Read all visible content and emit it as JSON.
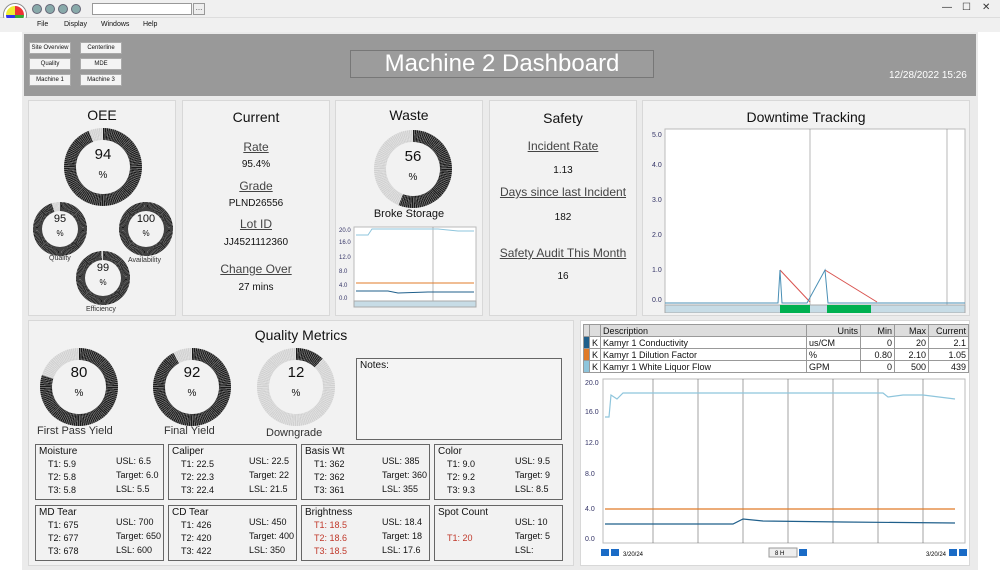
{
  "menu": {
    "items": [
      "File",
      "Display",
      "Windows",
      "Help"
    ]
  },
  "nav": {
    "buttons": [
      "Site Overview",
      "Centerline",
      "Quality",
      "MDE",
      "Machine 1",
      "Machine 3"
    ]
  },
  "header": {
    "title": "Machine 2 Dashboard",
    "datetime": "12/28/2022 15:26"
  },
  "oee": {
    "title": "OEE",
    "main": "94",
    "unit": "%",
    "quality": "95",
    "availability": "100",
    "efficiency": "99",
    "quality_label": "Quality",
    "availability_label": "Availability",
    "efficiency_label": "Efficiency",
    "main_pct": 0.94,
    "quality_pct": 0.95,
    "availability_pct": 1.0,
    "efficiency_pct": 0.99
  },
  "current": {
    "title": "Current",
    "rate_label": "Rate",
    "rate": "95.4%",
    "grade_label": "Grade",
    "grade": "PLND26556",
    "lot_label": "Lot ID",
    "lot": "JJ4521112360",
    "change_label": "Change Over",
    "change": "27 mins"
  },
  "waste": {
    "title": "Waste",
    "value": "56",
    "unit": "%",
    "pct": 0.56,
    "chart_title": "Broke Storage",
    "yticks": [
      "20.0",
      "16.0",
      "12.0",
      "8.0",
      "4.0",
      "0.0"
    ]
  },
  "safety": {
    "title": "Safety",
    "incident_label": "Incident Rate",
    "incident": "1.13",
    "days_label": "Days since last Incident",
    "days": "182",
    "audit_label": "Safety Audit This Month",
    "audit": "16"
  },
  "downtime": {
    "title": "Downtime Tracking",
    "yticks": [
      "5.0",
      "4.0",
      "3.0",
      "2.0",
      "1.0",
      "0.0"
    ]
  },
  "quality": {
    "title": "Quality Metrics",
    "fpy": "80",
    "fpy_label": "First Pass Yield",
    "fpy_pct": 0.8,
    "fy": "92",
    "fy_label": "Final Yield",
    "fy_pct": 0.92,
    "dg": "12",
    "dg_label": "Downgrade",
    "dg_pct": 0.12,
    "unit": "%",
    "notes_label": "Notes:"
  },
  "boxes": [
    {
      "name": "Moisture",
      "l": [
        "T1: 5.9",
        "T2: 5.8",
        "T3: 5.8"
      ],
      "r": [
        "USL: 6.5",
        "Target: 6.0",
        "LSL: 5.5"
      ],
      "red": false
    },
    {
      "name": "Caliper",
      "l": [
        "T1: 22.5",
        "T2: 22.3",
        "T3: 22.4"
      ],
      "r": [
        "USL: 22.5",
        "Target: 22",
        "LSL: 21.5"
      ],
      "red": false
    },
    {
      "name": "Basis Wt",
      "l": [
        "T1: 362",
        "T2: 362",
        "T3: 361"
      ],
      "r": [
        "USL: 385",
        "Target: 360",
        "LSL: 355"
      ],
      "red": false
    },
    {
      "name": "Color",
      "l": [
        "T1: 9.0",
        "T2: 9.2",
        "T3: 9.3"
      ],
      "r": [
        "USL: 9.5",
        "Target: 9",
        "LSL: 8.5"
      ],
      "red": false
    },
    {
      "name": "MD Tear",
      "l": [
        "T1: 675",
        "T2: 677",
        "T3: 678"
      ],
      "r": [
        "USL: 700",
        "Target: 650",
        "LSL: 600"
      ],
      "red": false
    },
    {
      "name": "CD Tear",
      "l": [
        "T1: 426",
        "T2: 420",
        "T3: 422"
      ],
      "r": [
        "USL: 450",
        "Target: 400",
        "LSL: 350"
      ],
      "red": false
    },
    {
      "name": "Brightness",
      "l": [
        "T1: 18.5",
        "T2: 18.6",
        "T3: 18.5"
      ],
      "r": [
        "USL: 18.4",
        "Target: 18",
        "LSL: 17.6"
      ],
      "red": true
    },
    {
      "name": "Spot Count",
      "l": [
        "",
        "T1: 20",
        ""
      ],
      "r": [
        "USL: 10",
        "Target: 5",
        "LSL:"
      ],
      "red": true
    }
  ],
  "trend": {
    "headers": [
      "Description",
      "Units",
      "Min",
      "Max",
      "Current"
    ],
    "rows": [
      {
        "k": "K",
        "desc": "Kamyr 1 Conductivity",
        "units": "us/CM",
        "min": "0",
        "max": "20",
        "cur": "2.1",
        "color": "#1f5f8b"
      },
      {
        "k": "K",
        "desc": "Kamyr 1 Dilution Factor",
        "units": "%",
        "min": "0.80",
        "max": "2.10",
        "cur": "1.05",
        "color": "#e07b28"
      },
      {
        "k": "K",
        "desc": "Kamyr 1 White Liquor Flow",
        "units": "GPM",
        "min": "0",
        "max": "500",
        "cur": "439",
        "color": "#8ec5dc"
      }
    ],
    "yticks": [
      "20.0",
      "16.0",
      "12.0",
      "8.0",
      "4.0",
      "0.0"
    ],
    "start": "3/20/24",
    "end": "3/20/24",
    "range": "8 H"
  },
  "colors": {
    "header": "#999999",
    "gauge_dark": "#1a1a1a",
    "gauge_light": "#d0d0d0",
    "green": "#00b050",
    "red": "#d9534f"
  }
}
